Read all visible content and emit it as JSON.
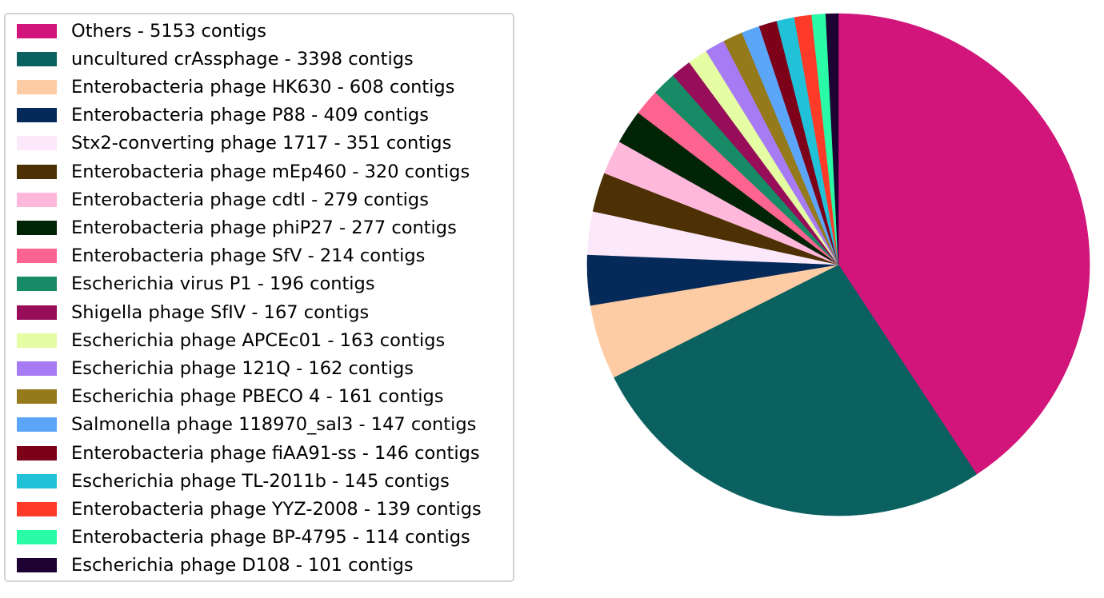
{
  "chart_data": {
    "type": "pie",
    "start_angle_deg": 90,
    "direction": "clockwise",
    "legend_position": "left",
    "slices": [
      {
        "label": "Others - 5153 contigs",
        "value": 5153,
        "color": "#d1157a"
      },
      {
        "label": "uncultured crAssphage - 3398 contigs",
        "value": 3398,
        "color": "#0b6060"
      },
      {
        "label": "Enterobacteria phage HK630 - 608 contigs",
        "value": 608,
        "color": "#fdcba4"
      },
      {
        "label": "Enterobacteria phage P88 - 409 contigs",
        "value": 409,
        "color": "#052a5a"
      },
      {
        "label": "Stx2-converting phage 1717 - 351 contigs",
        "value": 351,
        "color": "#fbe8fb"
      },
      {
        "label": "Enterobacteria phage mEp460 - 320 contigs",
        "value": 320,
        "color": "#4d3003"
      },
      {
        "label": "Enterobacteria phage cdtI - 279 contigs",
        "value": 279,
        "color": "#feb8dc"
      },
      {
        "label": "Enterobacteria phage phiP27 - 277 contigs",
        "value": 277,
        "color": "#002405"
      },
      {
        "label": "Enterobacteria phage SfV - 214 contigs",
        "value": 214,
        "color": "#fe6490"
      },
      {
        "label": "Escherichia virus P1 - 196 contigs",
        "value": 196,
        "color": "#178b65"
      },
      {
        "label": "Shigella phage SfIV - 167 contigs",
        "value": 167,
        "color": "#970d5a"
      },
      {
        "label": "Escherichia phage APCEc01 - 163 contigs",
        "value": 163,
        "color": "#e5fda3"
      },
      {
        "label": "Escherichia phage 121Q - 162 contigs",
        "value": 162,
        "color": "#a77bf4"
      },
      {
        "label": "Escherichia phage PBECO 4 - 161 contigs",
        "value": 161,
        "color": "#957a1c"
      },
      {
        "label": "Salmonella phage 118970_sal3 - 147 contigs",
        "value": 147,
        "color": "#5ca6fa"
      },
      {
        "label": "Enterobacteria phage fiAA91-ss - 146 contigs",
        "value": 146,
        "color": "#7c0119"
      },
      {
        "label": "Escherichia phage TL-2011b - 145 contigs",
        "value": 145,
        "color": "#21c2d8"
      },
      {
        "label": "Enterobacteria phage YYZ-2008 - 139 contigs",
        "value": 139,
        "color": "#fe3a28"
      },
      {
        "label": "Enterobacteria phage BP-4795 - 114 contigs",
        "value": 114,
        "color": "#2afba6"
      },
      {
        "label": "Escherichia phage D108 - 101 contigs",
        "value": 101,
        "color": "#1e0233"
      }
    ]
  }
}
